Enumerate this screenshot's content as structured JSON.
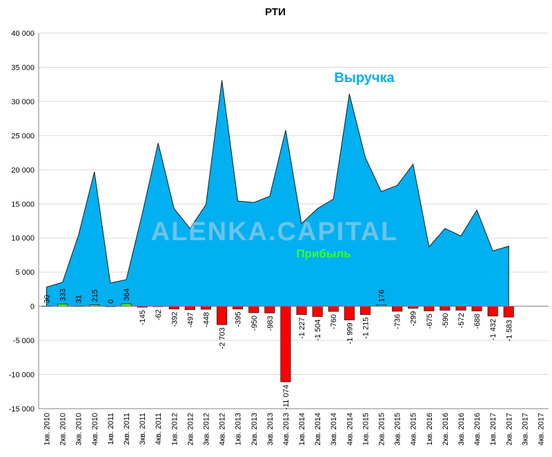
{
  "chart_data": {
    "type": "area",
    "title": "РТИ",
    "watermark": "ALENKA.CAPITAL",
    "ylim": [
      -15000,
      40000
    ],
    "yticks": [
      40000,
      35000,
      30000,
      25000,
      20000,
      15000,
      10000,
      5000,
      0,
      -5000,
      -10000,
      -15000
    ],
    "ytick_labels": [
      "40 000",
      "35 000",
      "30 000",
      "25 000",
      "20 000",
      "15 000",
      "10 000",
      "5 000",
      "0",
      "-5 000",
      "-10 000",
      "-15 000"
    ],
    "grid": "horizontal",
    "categories": [
      "1кв. 2010",
      "2кв. 2010",
      "3кв. 2010",
      "4кв. 2010",
      "1кв. 2011",
      "2кв. 2011",
      "3кв. 2011",
      "4кв. 2011",
      "1кв. 2012",
      "2кв. 2012",
      "3кв. 2012",
      "4кв. 2012",
      "1кв. 2013",
      "2кв. 2013",
      "3кв. 2013",
      "4кв. 2013",
      "1кв. 2014",
      "2кв. 2014",
      "3кв. 2014",
      "4кв. 2014",
      "1кв. 2015",
      "2кв. 2015",
      "3кв. 2015",
      "4кв. 2015",
      "1кв. 2016",
      "2кв. 2016",
      "3кв. 2016",
      "4кв. 2016",
      "1кв. 2017",
      "2кв. 2017",
      "3кв. 2017",
      "4кв. 2017"
    ],
    "series": [
      {
        "name": "Выручка",
        "type": "area",
        "color": "#00b0f0",
        "values": [
          2800,
          3500,
          10400,
          19700,
          3400,
          3900,
          13500,
          23900,
          14300,
          11400,
          14900,
          33100,
          15400,
          15200,
          16100,
          25800,
          12100,
          14300,
          15700,
          31100,
          21800,
          16800,
          17700,
          20800,
          8700,
          11400,
          10300,
          14100,
          8100,
          8800,
          null,
          null
        ]
      },
      {
        "name": "Прибыль",
        "type": "bar",
        "color_pos": "#33ff33",
        "color_neg": "#ff0000",
        "values": [
          30,
          333,
          31,
          215,
          0,
          364,
          -145,
          -62,
          -392,
          -497,
          -448,
          -2703,
          -395,
          -950,
          -983,
          -11074,
          -1227,
          -1504,
          -760,
          -1999,
          -1215,
          176,
          -736,
          -299,
          -675,
          -590,
          -572,
          -688,
          -1432,
          -1583,
          null,
          null
        ],
        "labels": [
          "30",
          "333",
          "31",
          "215",
          "0",
          "364",
          "-145",
          "-62",
          "-392",
          "-497",
          "-448",
          "-2 703",
          "-395",
          "-950",
          "-983",
          "-11 074",
          "-1 227",
          "-1 504",
          "-760",
          "-1 999",
          "-1 215",
          "176",
          "-736",
          "-299",
          "-675",
          "-590",
          "-572",
          "-688",
          "-1 432",
          "-1 583",
          "",
          ""
        ]
      }
    ]
  }
}
